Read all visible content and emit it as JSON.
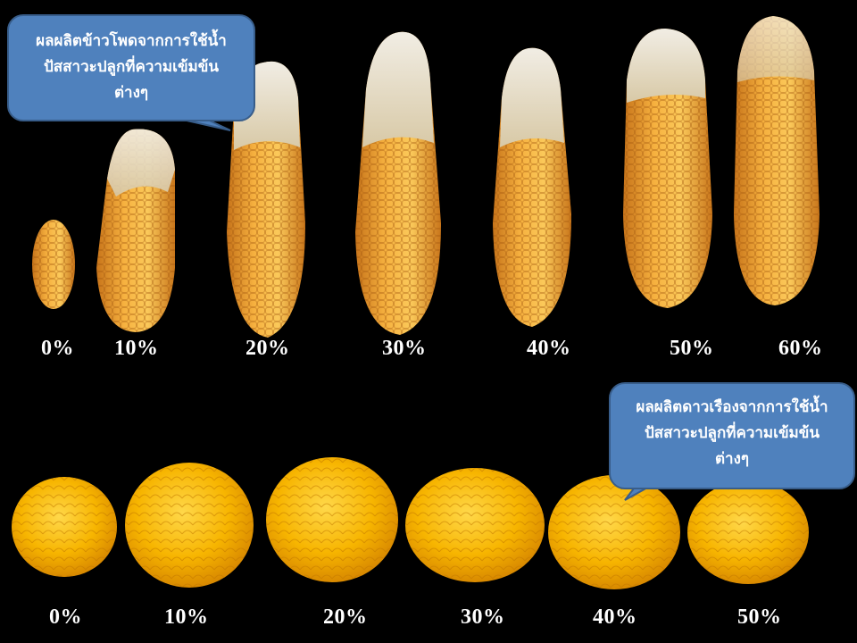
{
  "corn": {
    "callout": {
      "line1": "ผลผลิตข้าวโพดจากการใช้น้ำ",
      "line2": "ปัสสาวะปลูกที่ความเข้มข้น",
      "line3": "ต่างๆ"
    },
    "labels": [
      "0%",
      "10%",
      "20%",
      "30%",
      "40%",
      "50%",
      "60%"
    ]
  },
  "marigold": {
    "callout": {
      "line1": "ผลผลิตดาวเรืองจากการใช้น้ำ",
      "line2": "ปัสสาวะปลูกที่ความเข้มข้น",
      "line3": "ต่างๆ"
    },
    "labels": [
      "0%",
      "10%",
      "20%",
      "30%",
      "40%",
      "50%"
    ]
  },
  "colors": {
    "background": "#000000",
    "callout_fill": "#4f81bd",
    "callout_border": "#385d8a",
    "corn_kernel": "#f2a938",
    "corn_tip": "#e8e2d4",
    "marigold": "#f7b500"
  }
}
